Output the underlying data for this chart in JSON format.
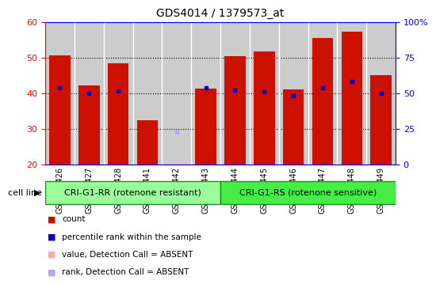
{
  "title": "GDS4014 / 1379573_at",
  "samples": [
    "GSM498426",
    "GSM498427",
    "GSM498428",
    "GSM498441",
    "GSM498442",
    "GSM498443",
    "GSM498444",
    "GSM498445",
    "GSM498446",
    "GSM498447",
    "GSM498448",
    "GSM498449"
  ],
  "counts": [
    50.5,
    42.2,
    48.3,
    32.4,
    null,
    41.2,
    50.3,
    51.7,
    41.0,
    55.5,
    57.2,
    45.0
  ],
  "absent_counts": [
    null,
    null,
    null,
    null,
    20.3,
    null,
    null,
    null,
    null,
    null,
    null,
    null
  ],
  "ranks_pct": [
    54.0,
    50.0,
    51.5,
    null,
    null,
    54.0,
    52.0,
    51.0,
    48.0,
    54.0,
    58.0,
    50.0
  ],
  "absent_ranks_pct": [
    null,
    null,
    null,
    null,
    23.0,
    null,
    null,
    null,
    null,
    null,
    null,
    null
  ],
  "group1_indices": [
    0,
    1,
    2,
    3,
    4,
    5
  ],
  "group2_indices": [
    6,
    7,
    8,
    9,
    10,
    11
  ],
  "group1_label": "CRI-G1-RR (rotenone resistant)",
  "group2_label": "CRI-G1-RS (rotenone sensitive)",
  "cell_line_label": "cell line",
  "ymin": 20,
  "ymax": 60,
  "yticks_left": [
    20,
    30,
    40,
    50,
    60
  ],
  "yticks_right": [
    0,
    25,
    50,
    75,
    100
  ],
  "bar_color": "#cc1100",
  "rank_color": "#0000cc",
  "absent_bar_color": "#ffaaaa",
  "absent_rank_color": "#aaaaff",
  "col_bg_color": "#cccccc",
  "group1_bg": "#99ff99",
  "group2_bg": "#44ee44",
  "grid_color": "#000000",
  "legend_items": [
    {
      "label": "count",
      "color": "#cc1100"
    },
    {
      "label": "percentile rank within the sample",
      "color": "#0000cc"
    },
    {
      "label": "value, Detection Call = ABSENT",
      "color": "#ffaaaa"
    },
    {
      "label": "rank, Detection Call = ABSENT",
      "color": "#aaaaff"
    }
  ]
}
